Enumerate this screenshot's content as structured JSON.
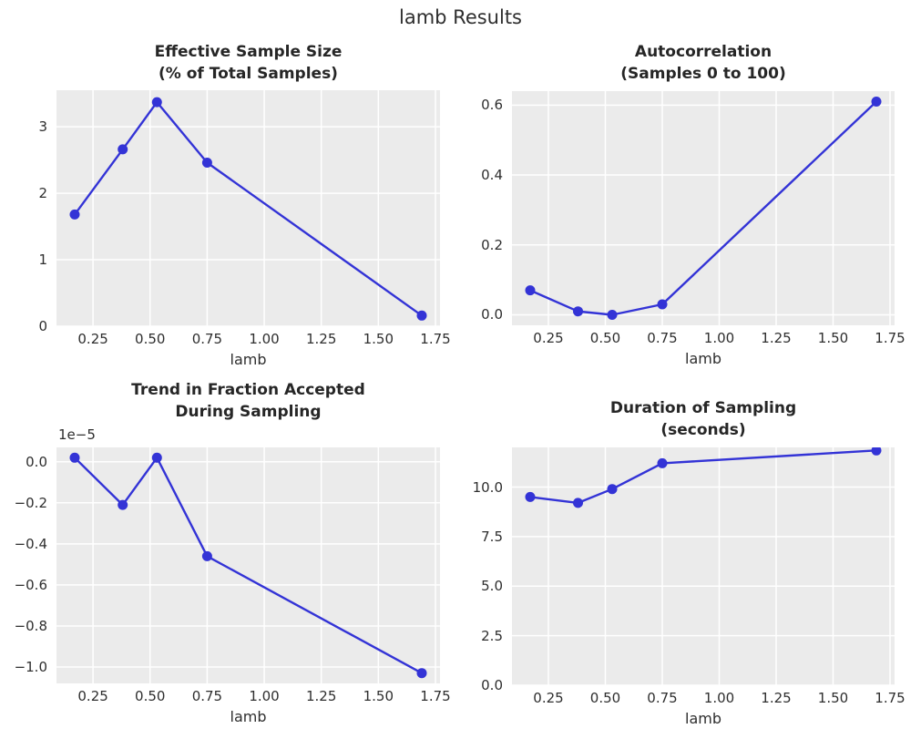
{
  "figure": {
    "suptitle": "lamb Results",
    "colors": {
      "background": "#ffffff",
      "axes_background": "#ebebeb",
      "grid": "#ffffff",
      "line": "#3333d6",
      "title_text": "#262626",
      "tick_text": "#2e2e2e"
    }
  },
  "chart_data": [
    {
      "type": "line",
      "id": "effective-sample-size",
      "title": "Effective Sample Size (% of Total Samples)",
      "title_lines": [
        "Effective Sample Size",
        "(% of Total Samples)"
      ],
      "xlabel": "lamb",
      "ylabel": "",
      "x": [
        0.17,
        0.38,
        0.53,
        0.75,
        1.69
      ],
      "y": [
        1.68,
        2.66,
        3.37,
        2.46,
        0.16
      ],
      "xlim": [
        0.09,
        1.77
      ],
      "ylim": [
        0.0,
        3.55
      ],
      "xticks": [
        0.25,
        0.5,
        0.75,
        1.0,
        1.25,
        1.5,
        1.75
      ],
      "xtick_labels": [
        "0.25",
        "0.50",
        "0.75",
        "1.00",
        "1.25",
        "1.50",
        "1.75"
      ],
      "yticks": [
        0,
        1,
        2,
        3
      ],
      "ytick_labels": [
        "0",
        "1",
        "2",
        "3"
      ],
      "grid": true,
      "marker": "circle",
      "legend": null
    },
    {
      "type": "line",
      "id": "autocorrelation",
      "title": "Autocorrelation (Samples 0 to 100)",
      "title_lines": [
        "Autocorrelation",
        "(Samples 0 to 100)"
      ],
      "xlabel": "lamb",
      "ylabel": "",
      "x": [
        0.17,
        0.38,
        0.53,
        0.75,
        1.69
      ],
      "y": [
        0.07,
        0.01,
        0.0,
        0.03,
        0.61
      ],
      "xlim": [
        0.09,
        1.77
      ],
      "ylim": [
        -0.03,
        0.64
      ],
      "xticks": [
        0.25,
        0.5,
        0.75,
        1.0,
        1.25,
        1.5,
        1.75
      ],
      "xtick_labels": [
        "0.25",
        "0.50",
        "0.75",
        "1.00",
        "1.25",
        "1.50",
        "1.75"
      ],
      "yticks": [
        0.0,
        0.2,
        0.4,
        0.6
      ],
      "ytick_labels": [
        "0.0",
        "0.2",
        "0.4",
        "0.6"
      ],
      "grid": true,
      "marker": "circle",
      "legend": null
    },
    {
      "type": "line",
      "id": "trend-fraction-accepted",
      "title": "Trend in Fraction Accepted During Sampling",
      "title_lines": [
        "Trend in Fraction Accepted",
        "During Sampling"
      ],
      "xlabel": "lamb",
      "ylabel": "",
      "offset_text": "1e−5",
      "y_scale_factor": 1e-05,
      "x": [
        0.17,
        0.38,
        0.53,
        0.75,
        1.69
      ],
      "y": [
        0.02,
        -0.21,
        0.02,
        -0.46,
        -1.03
      ],
      "xlim": [
        0.09,
        1.77
      ],
      "ylim": [
        -1.08,
        0.07
      ],
      "xticks": [
        0.25,
        0.5,
        0.75,
        1.0,
        1.25,
        1.5,
        1.75
      ],
      "xtick_labels": [
        "0.25",
        "0.50",
        "0.75",
        "1.00",
        "1.25",
        "1.50",
        "1.75"
      ],
      "yticks": [
        0.0,
        -0.2,
        -0.4,
        -0.6,
        -0.8,
        -1.0
      ],
      "ytick_labels": [
        "0.0",
        "−0.2",
        "−0.4",
        "−0.6",
        "−0.8",
        "−1.0"
      ],
      "grid": true,
      "marker": "circle",
      "legend": null
    },
    {
      "type": "line",
      "id": "duration-of-sampling",
      "title": "Duration of Sampling (seconds)",
      "title_lines": [
        "Duration of Sampling",
        "(seconds)"
      ],
      "xlabel": "lamb",
      "ylabel": "",
      "x": [
        0.17,
        0.38,
        0.53,
        0.75,
        1.69
      ],
      "y": [
        9.5,
        9.2,
        9.9,
        11.2,
        11.85
      ],
      "xlim": [
        0.09,
        1.77
      ],
      "ylim": [
        0.0,
        12.0
      ],
      "xticks": [
        0.25,
        0.5,
        0.75,
        1.0,
        1.25,
        1.5,
        1.75
      ],
      "xtick_labels": [
        "0.25",
        "0.50",
        "0.75",
        "1.00",
        "1.25",
        "1.50",
        "1.75"
      ],
      "yticks": [
        0.0,
        2.5,
        5.0,
        7.5,
        10.0
      ],
      "ytick_labels": [
        "0.0",
        "2.5",
        "5.0",
        "7.5",
        "10.0"
      ],
      "grid": true,
      "marker": "circle",
      "legend": null
    }
  ]
}
